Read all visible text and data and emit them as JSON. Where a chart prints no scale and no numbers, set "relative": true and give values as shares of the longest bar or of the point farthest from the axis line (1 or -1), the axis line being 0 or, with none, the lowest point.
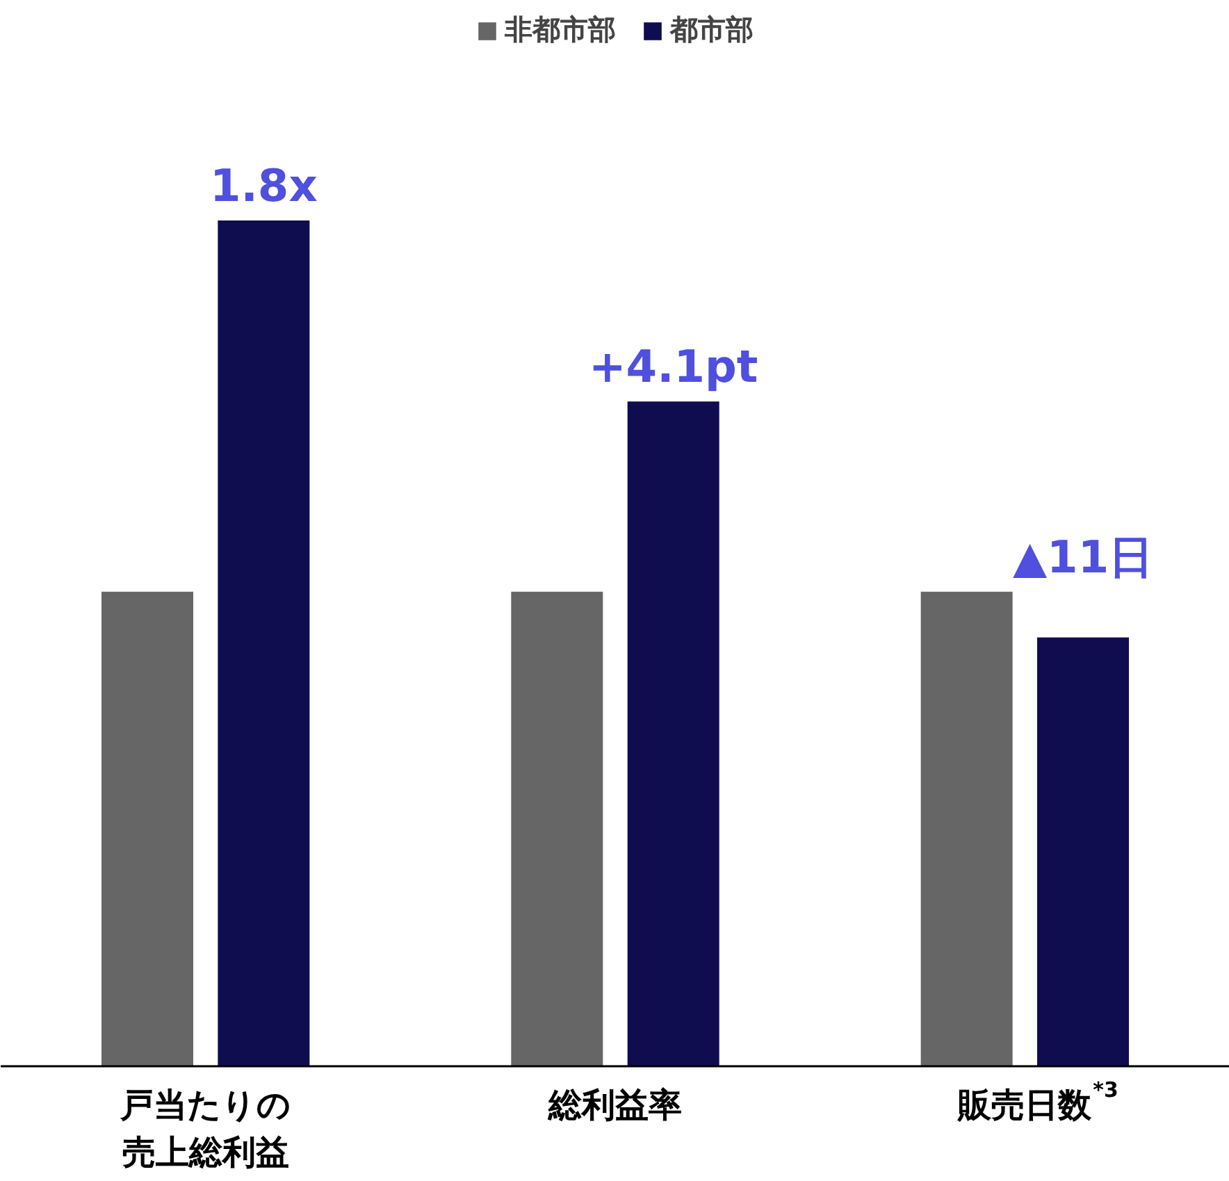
{
  "chart_data": {
    "type": "bar",
    "relative": true,
    "categories": [
      "戸当たりの売上総利益",
      "総利益率",
      "販売日数$^{*3}$"
    ],
    "series": [
      {
        "name": "非都市部",
        "color": "#666666",
        "values": [
          0.561,
          0.561,
          0.561
        ]
      },
      {
        "name": "都市部",
        "color": "#100c50",
        "values": [
          1,
          0.786,
          0.507
        ]
      }
    ],
    "annotations": [
      "1.8x",
      "+4.1pt",
      "▲11日"
    ],
    "legend": "top",
    "grid": false
  }
}
